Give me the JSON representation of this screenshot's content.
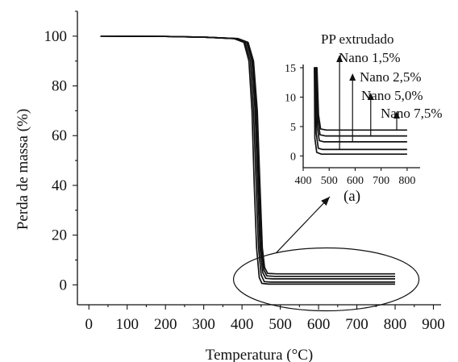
{
  "chart_data": {
    "type": "line",
    "xlabel": "Temperatura (°C)",
    "ylabel": "Perda de massa (%)",
    "xlim": [
      -30,
      920
    ],
    "ylim": [
      -8,
      110
    ],
    "xticks": [
      0,
      100,
      200,
      300,
      400,
      500,
      600,
      700,
      800,
      900
    ],
    "yticks": [
      0,
      20,
      40,
      60,
      80,
      100
    ],
    "series": [
      {
        "name": "PP extrudado",
        "x": [
          30,
          200,
          300,
          380,
          405,
          418,
          426,
          432,
          438,
          445,
          452,
          470,
          800
        ],
        "y": [
          100,
          99.9,
          99.6,
          99.0,
          97.5,
          90,
          70,
          40,
          15,
          3,
          0.6,
          0.3,
          0.3
        ]
      },
      {
        "name": "Nano 1,5%",
        "x": [
          30,
          200,
          300,
          380,
          408,
          422,
          430,
          437,
          443,
          450,
          458,
          475,
          800
        ],
        "y": [
          100,
          99.9,
          99.6,
          99.0,
          97.5,
          90,
          70,
          40,
          15,
          4,
          1.3,
          1.1,
          1.1
        ]
      },
      {
        "name": "Nano 2,5%",
        "x": [
          30,
          200,
          300,
          385,
          412,
          426,
          434,
          441,
          447,
          454,
          462,
          480,
          800
        ],
        "y": [
          100,
          99.9,
          99.6,
          99.0,
          97.5,
          90,
          70,
          40,
          15,
          5,
          2.6,
          2.4,
          2.4
        ]
      },
      {
        "name": "Nano 5,0%",
        "x": [
          30,
          200,
          300,
          388,
          414,
          428,
          437,
          444,
          450,
          457,
          465,
          485,
          800
        ],
        "y": [
          100,
          99.9,
          99.6,
          99.0,
          97.5,
          90,
          70,
          40,
          15,
          6,
          3.6,
          3.4,
          3.4
        ]
      },
      {
        "name": "Nano 7,5%",
        "x": [
          30,
          200,
          300,
          390,
          416,
          430,
          440,
          447,
          453,
          459,
          467,
          490,
          800
        ],
        "y": [
          100,
          99.9,
          99.6,
          99.0,
          97.5,
          90,
          70,
          40,
          15,
          7,
          4.6,
          4.4,
          4.4
        ]
      }
    ],
    "inset": {
      "xlim": [
        400,
        850
      ],
      "ylim": [
        -2,
        15
      ],
      "xticks": [
        400,
        500,
        600,
        700,
        800
      ],
      "yticks": [
        0,
        5,
        10,
        15
      ],
      "label": "(a)",
      "legend": [
        "PP extrudado",
        "Nano 1,5%",
        "Nano 2,5%",
        "Nano 5,0%",
        "Nano 7,5%"
      ],
      "arrow_x": [
        500,
        540,
        590,
        660,
        760
      ]
    }
  }
}
